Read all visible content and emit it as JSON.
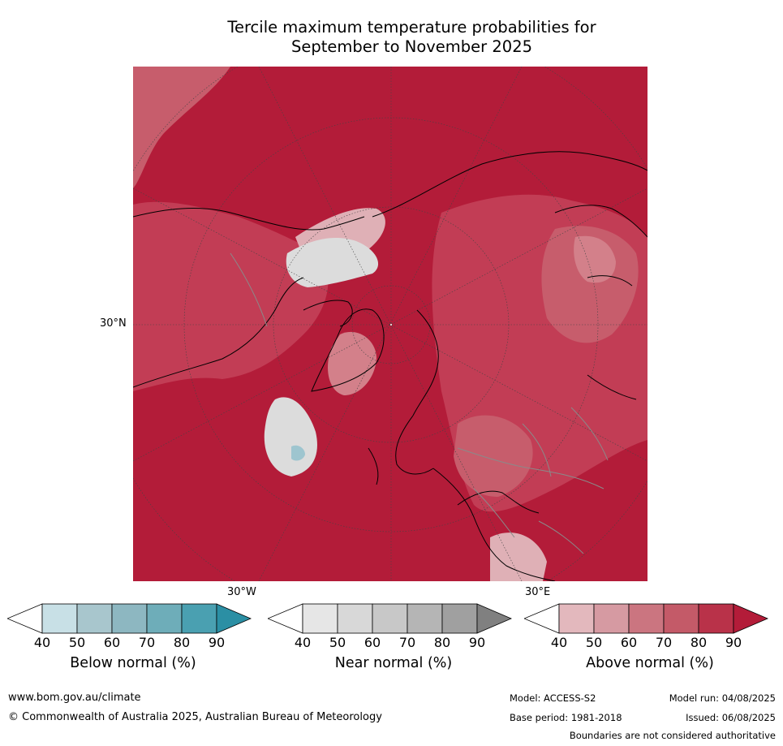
{
  "title_line1": "Tercile maximum temperature probabilities for",
  "title_line2": "September to November 2025",
  "map": {
    "lat_label": "30°N",
    "lon_label_left": "30°W",
    "lon_label_right": "30°E",
    "colors": {
      "ocean_dominant": "#b31c39",
      "above_80": "#c23d55",
      "above_70": "#c75d6c",
      "above_60": "#d3808a",
      "above_50": "#dfb0b6",
      "near_normal": "#dcdcdc",
      "below_50": "#9ec5cf",
      "coastline": "#000000",
      "borders": "#8a8a8a",
      "graticule": "#444444"
    }
  },
  "legends": [
    {
      "label": "Below normal (%)",
      "ticks": [
        "40",
        "50",
        "60",
        "70",
        "80",
        "90"
      ],
      "colors": [
        "#c8e0e6",
        "#a8c6cd",
        "#8db7c1",
        "#6eadb9",
        "#4aa0b1",
        "#2b8fa4"
      ]
    },
    {
      "label": "Near normal (%)",
      "ticks": [
        "40",
        "50",
        "60",
        "70",
        "80",
        "90"
      ],
      "colors": [
        "#e6e6e6",
        "#d8d8d8",
        "#c8c8c8",
        "#b5b5b5",
        "#a0a0a0",
        "#808080"
      ]
    },
    {
      "label": "Above normal (%)",
      "ticks": [
        "40",
        "50",
        "60",
        "70",
        "80",
        "90"
      ],
      "colors": [
        "#e3b8bd",
        "#d69aa2",
        "#cb7580",
        "#c45a68",
        "#b93249",
        "#b31c39"
      ]
    }
  ],
  "footer": {
    "website": "www.bom.gov.au/climate",
    "copyright": "© Commonwealth of Australia 2025, Australian Bureau of Meteorology",
    "model": "Model: ACCESS-S2",
    "base_period": "Base period: 1981-2018",
    "model_run": "Model run: 04/08/2025",
    "issued": "Issued: 06/08/2025",
    "disclaimer": "Boundaries are not considered authoritative"
  }
}
